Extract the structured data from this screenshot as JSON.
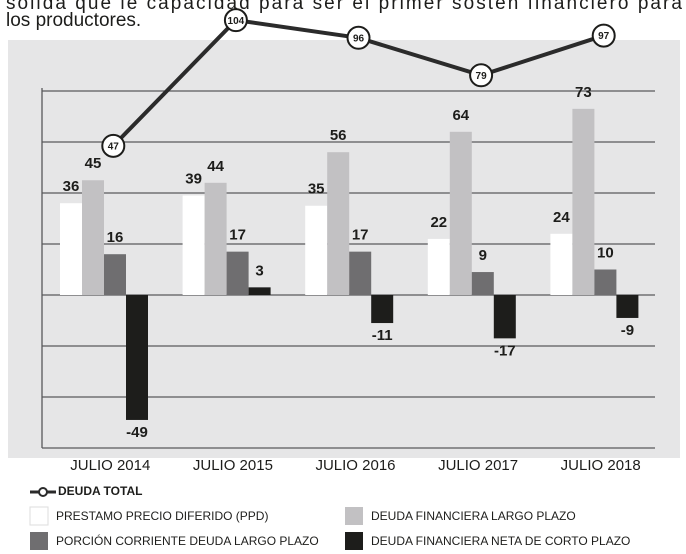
{
  "text": {
    "lines": [
      "sólida que le capacidad para ser el primer sostén financiero para",
      "los productores."
    ]
  },
  "chart_data": {
    "type": "bar",
    "categories": [
      "JULIO 2014",
      "JULIO 2015",
      "JULIO 2016",
      "JULIO 2017",
      "JULIO 2018"
    ],
    "series": [
      {
        "name": "PRESTAMO PRECIO DIFERIDO (PPD)",
        "color": "#ffffff",
        "values": [
          36,
          39,
          35,
          22,
          24
        ]
      },
      {
        "name": "DEUDA FINANCIERA LARGO PLAZO",
        "color": "#c2c1c3",
        "values": [
          45,
          44,
          56,
          64,
          73
        ]
      },
      {
        "name": "PORCIÓN CORRIENTE DEUDA LARGO PLAZO",
        "color": "#6f6e70",
        "values": [
          16,
          17,
          17,
          9,
          10
        ]
      },
      {
        "name": "DEUDA FINANCIERA NETA DE CORTO PLAZO",
        "color": "#1d1d1b",
        "values": [
          -49,
          3,
          -11,
          -17,
          -9
        ]
      },
      {
        "name": "DEUDA TOTAL",
        "color": "#2b2b2b",
        "type": "line",
        "axis": "y2",
        "values": [
          47,
          104,
          96,
          79,
          97
        ]
      }
    ],
    "ylim": [
      -60,
      100
    ],
    "yticks": [
      -40,
      -20,
      0,
      20,
      40,
      60,
      80
    ],
    "grid": true,
    "y2lim": [
      -90,
      95
    ]
  }
}
